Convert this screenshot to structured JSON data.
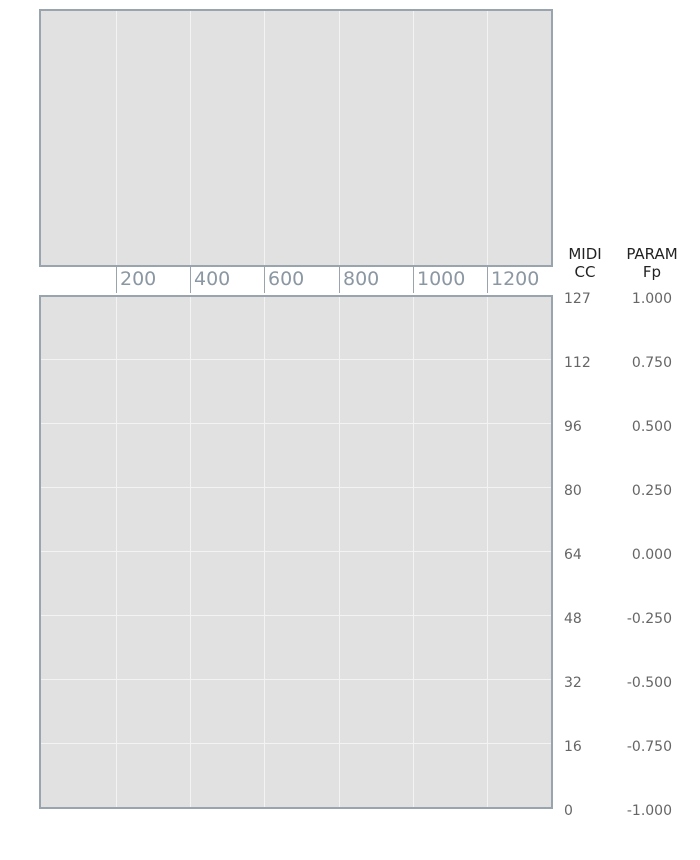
{
  "x_axis": {
    "ticks": [
      "200",
      "400",
      "600",
      "800",
      "1000",
      "1200"
    ]
  },
  "headers": {
    "midi": {
      "line1": "MIDI",
      "line2": "CC"
    },
    "param": {
      "line1": "PARAM",
      "line2": "Fp"
    }
  },
  "y_axis": {
    "midi_cc": [
      "127",
      "112",
      "96",
      "80",
      "64",
      "48",
      "32",
      "16",
      "0"
    ],
    "param_fp": [
      "1.000",
      "0.750",
      "0.500",
      "0.250",
      "0.000",
      "-0.250",
      "-0.500",
      "-0.750",
      "-1.000"
    ]
  },
  "colors": {
    "plot_background": "#e1e1e1",
    "plot_border": "#9aa4ae",
    "grid": "#f3f3f3",
    "x_tick_text": "#8b97a2",
    "y_label_text": "#666666"
  }
}
